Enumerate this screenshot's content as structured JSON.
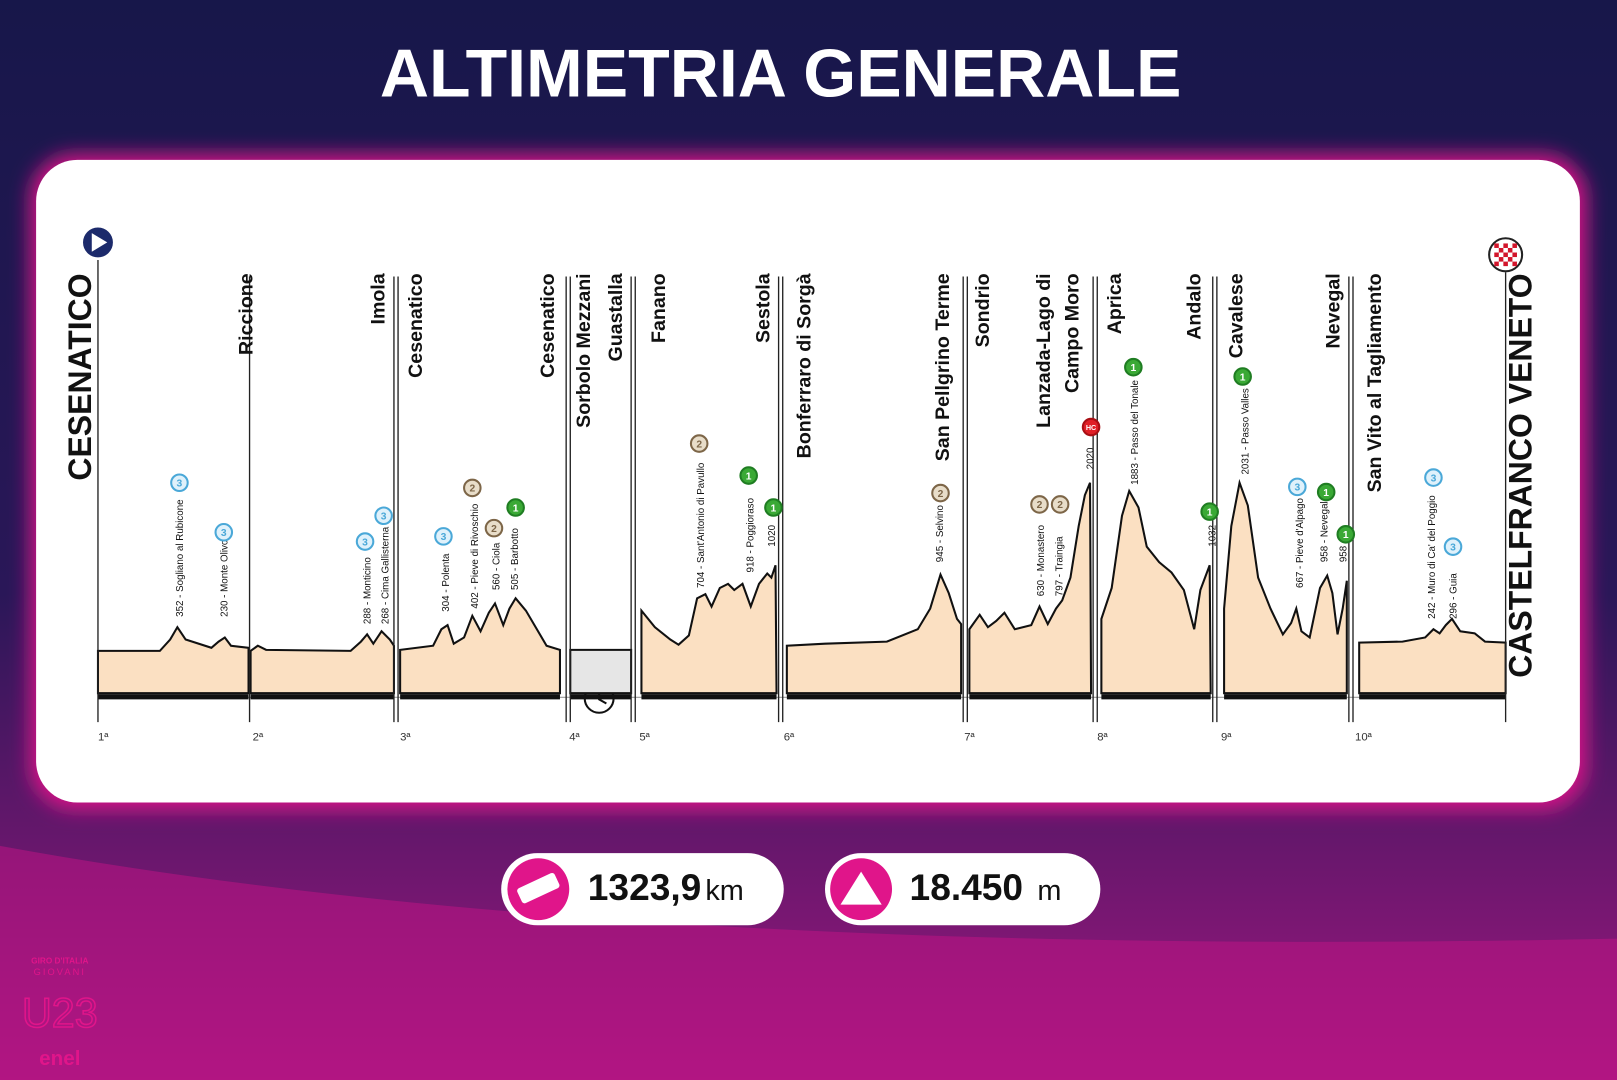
{
  "title": "ALTIMETRIA GENERALE",
  "start": "CESENATICO",
  "finish": "CASTELFRANCO VENETO",
  "towns": [
    "Riccione",
    "Imola",
    "Cesenatico",
    "Cesenatico",
    "Sorbolo Mezzani",
    "Guastalla",
    "Fanano",
    "Sestola",
    "Bonferraro di Sorgà",
    "San Pellgrino Terme",
    "Sondrio",
    "Lanzada-Lago di",
    "Campo Moro",
    "Aprica",
    "Andalo",
    "Cavalese",
    "Nevegal",
    "San Vito al Tagliamento"
  ],
  "stages": [
    "1ª",
    "2ª",
    "3ª",
    "4ª",
    "5ª",
    "6ª",
    "7ª",
    "8ª",
    "9ª",
    "10ª"
  ],
  "climbs": [
    {
      "label": "352 - Sogliano al Rubicone",
      "category": "3"
    },
    {
      "label": "230 - Monte Olivo",
      "category": "3"
    },
    {
      "label": "288 - Monticino",
      "category": "3"
    },
    {
      "label": "268 - Cima Gallisterna",
      "category": "3"
    },
    {
      "label": "304 - Polenta",
      "category": "3"
    },
    {
      "label": "402 - Pieve di Rivoschio",
      "category": "2"
    },
    {
      "label": "560 - Ciola",
      "category": "2"
    },
    {
      "label": "505 - Barbotto",
      "category": "1"
    },
    {
      "label": "704 - Sant'Antonio di Pavullo",
      "category": "2"
    },
    {
      "label": "918 - Poggioraso",
      "category": "1"
    },
    {
      "label": "1020",
      "category": "1"
    },
    {
      "label": "945 - Selvino",
      "category": "2"
    },
    {
      "label": "630 - Monastero",
      "category": "2"
    },
    {
      "label": "797 - Traingia",
      "category": "2"
    },
    {
      "label": "2020",
      "category": "HC"
    },
    {
      "label": "1883 - Passo del Tonale",
      "category": "1"
    },
    {
      "label": "1032",
      "category": "1"
    },
    {
      "label": "2031 - Passo Valles",
      "category": "1"
    },
    {
      "label": "667 - Pieve d'Alpago",
      "category": "3"
    },
    {
      "label": "958 - Nevegal",
      "category": "1"
    },
    {
      "label": "958",
      "category": "1"
    },
    {
      "label": "242 - Muro di Ca' del Poggio",
      "category": "3"
    },
    {
      "label": "296 - Guia",
      "category": "3"
    }
  ],
  "stats": {
    "distance": "1323,9",
    "distance_unit": "km",
    "elevation": "18.450",
    "elevation_unit": "m"
  },
  "logo": {
    "line1": "GIRO D'ITALIA",
    "line2": "GIOVANI",
    "line3": "U23",
    "line4": "enel"
  }
}
